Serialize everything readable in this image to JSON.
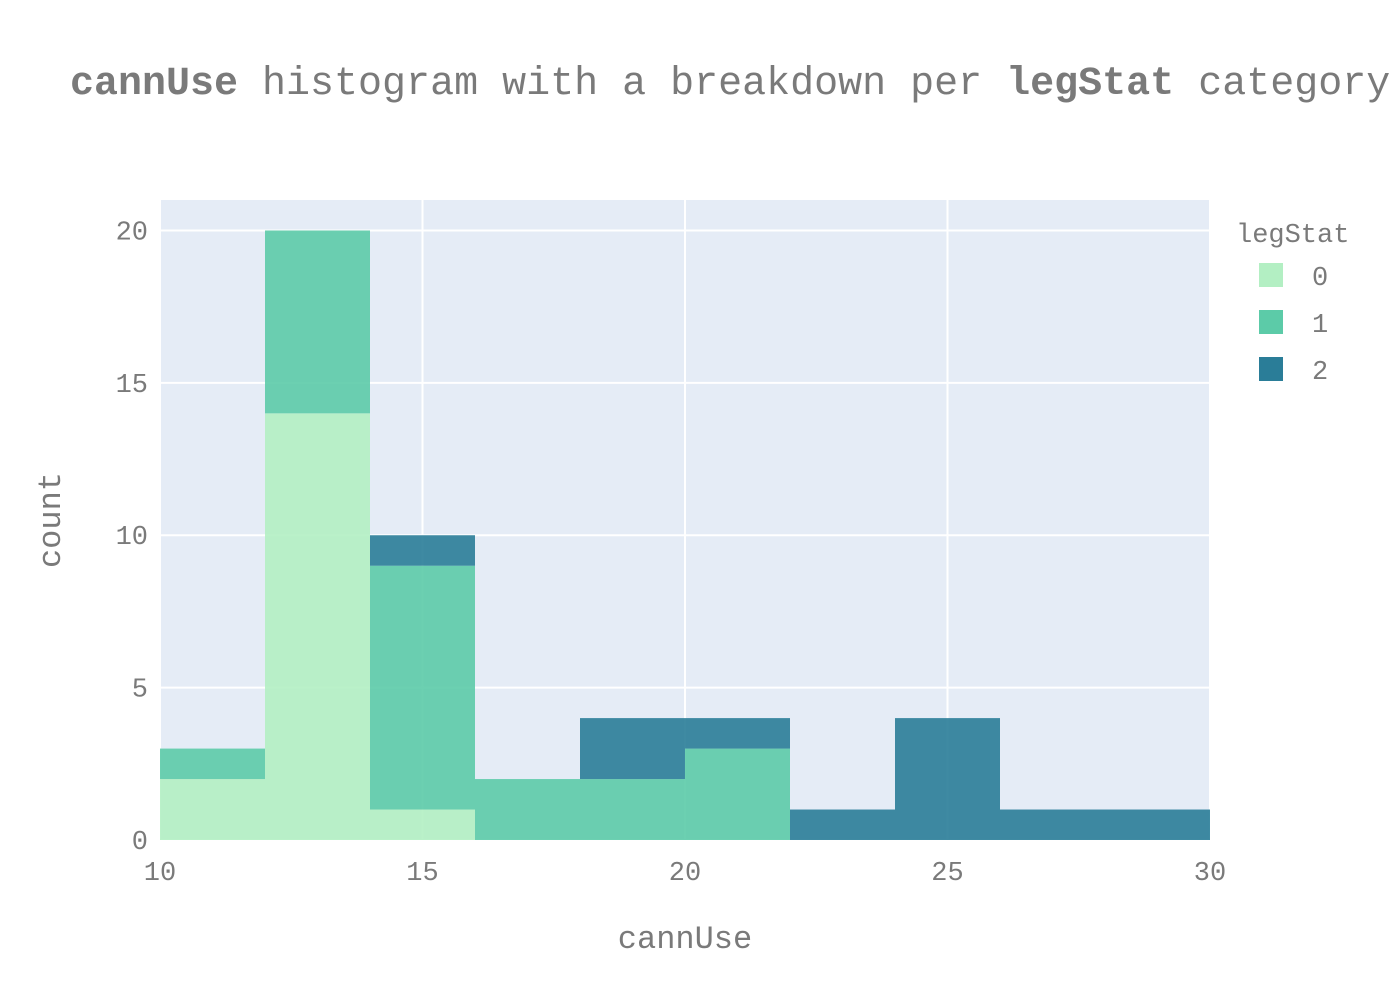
{
  "chart_data": {
    "type": "bar",
    "stacked": true,
    "title": {
      "var1": "cannUse",
      "middle": " histogram with a breakdown per ",
      "var2": "legStat",
      "end": " category"
    },
    "xlabel": "cannUse",
    "ylabel": "count",
    "xlim": [
      10,
      30
    ],
    "ylim": [
      0,
      21
    ],
    "xticks": [
      10,
      15,
      20,
      25,
      30
    ],
    "yticks": [
      0,
      5,
      10,
      15,
      20
    ],
    "grid": true,
    "bin_edges": [
      10,
      12,
      14,
      16,
      18,
      20,
      22,
      24,
      26,
      28,
      30
    ],
    "legend": {
      "title": "legStat",
      "placement": "right"
    },
    "series": [
      {
        "name": "0",
        "color": "#b3efc3",
        "values": [
          2,
          14,
          1,
          0,
          0,
          0,
          0,
          0,
          0,
          0
        ]
      },
      {
        "name": "1",
        "color": "#5ccba8",
        "values": [
          1,
          6,
          8,
          2,
          2,
          3,
          0,
          0,
          0,
          0
        ]
      },
      {
        "name": "2",
        "color": "#2a7d98",
        "values": [
          0,
          0,
          1,
          0,
          2,
          1,
          1,
          4,
          1,
          1
        ]
      }
    ]
  }
}
